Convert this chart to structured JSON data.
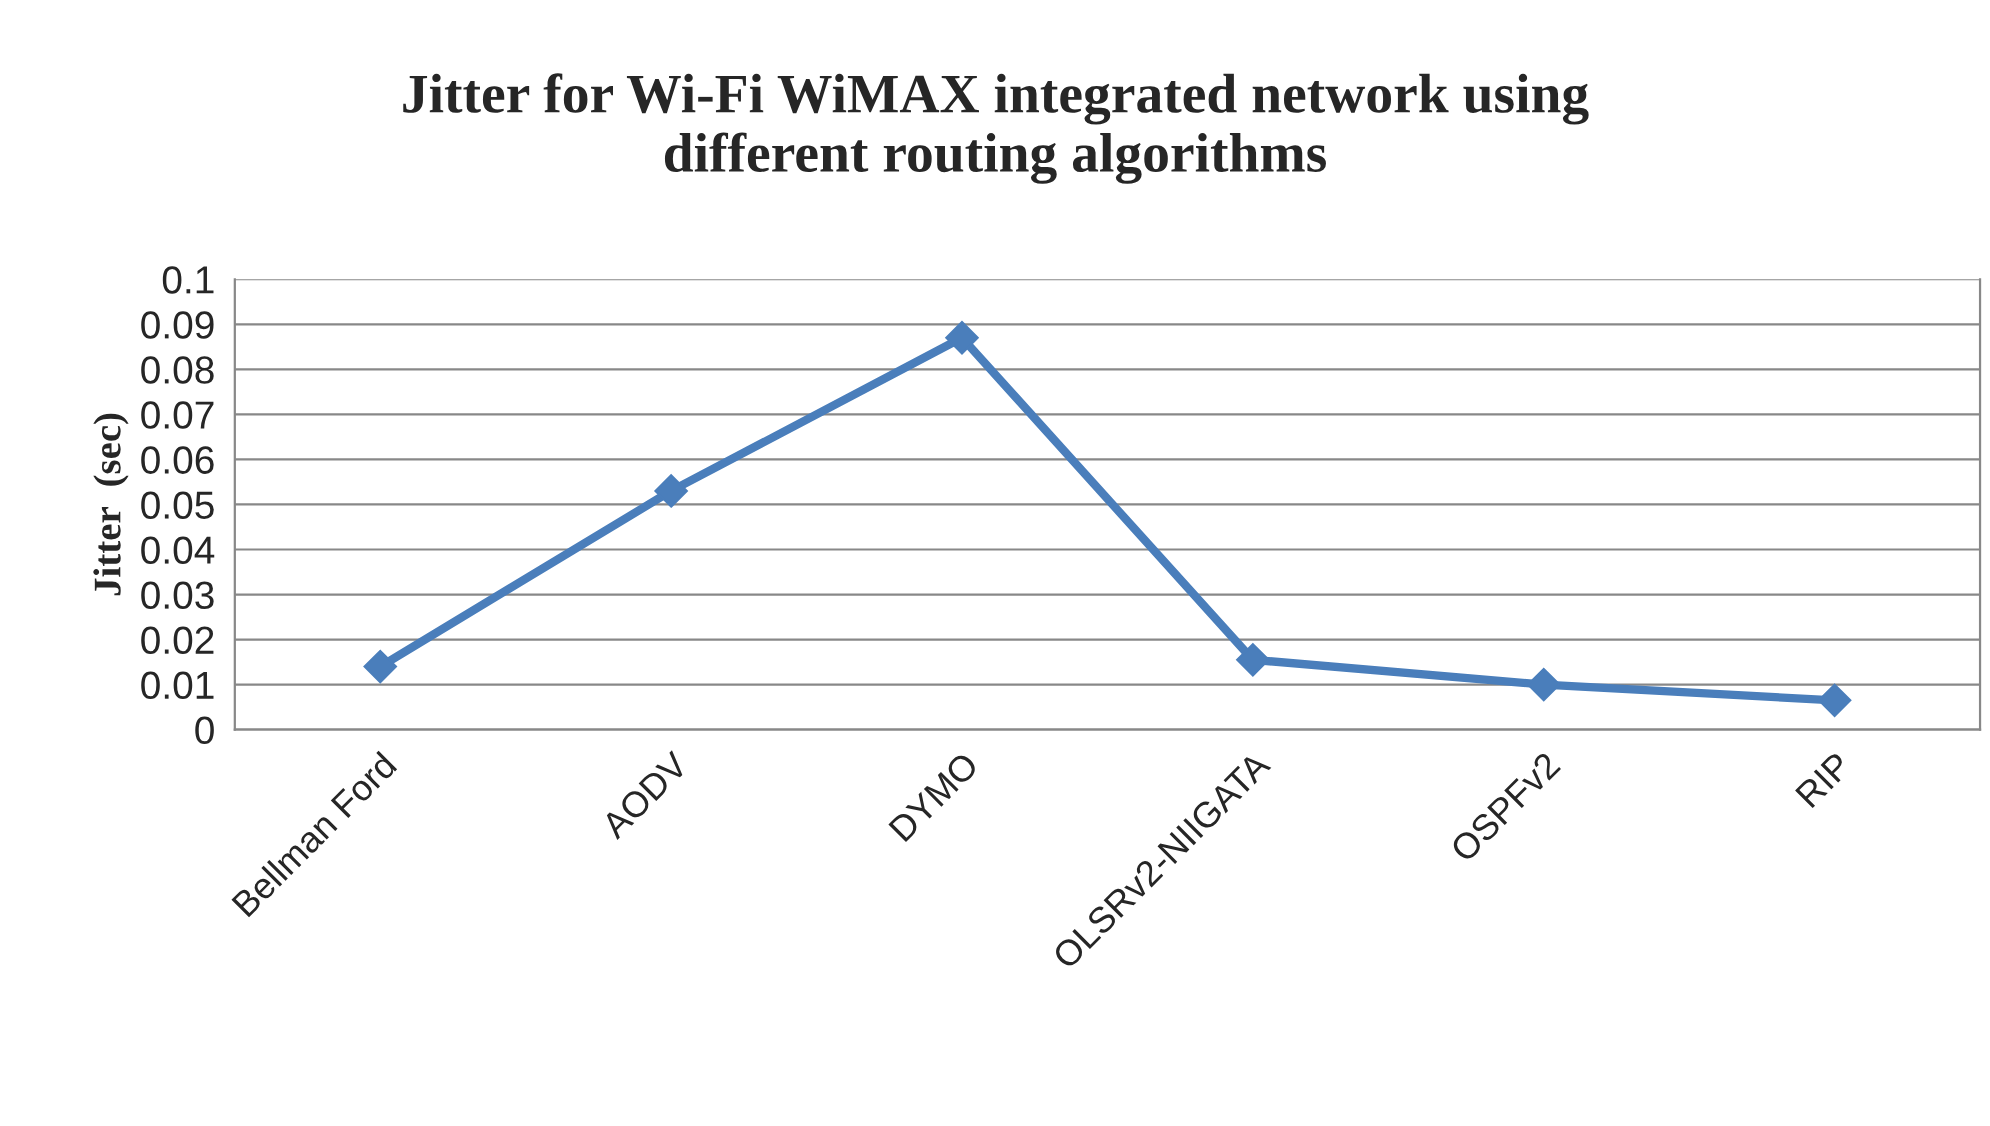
{
  "chart_data": {
    "type": "line",
    "title": "Jitter for Wi-Fi WiMAX integrated network using\ndifferent routing algorithms",
    "ylabel": "Jitter  (sec)",
    "categories": [
      "Bellman Ford",
      "AODV",
      "DYMO",
      "OLSRv2-NIIGATA",
      "OSPFv2",
      "RIP"
    ],
    "series": [
      {
        "color": "#4a7ebb",
        "values": [
          0.014,
          0.053,
          0.087,
          0.0155,
          0.01,
          0.0065
        ]
      }
    ],
    "ylim": [
      0,
      0.1
    ],
    "yticks": [
      0,
      0.01,
      0.02,
      0.03,
      0.04,
      0.05,
      0.06,
      0.07,
      0.08,
      0.09,
      0.1
    ],
    "grid": "y",
    "marker": "diamond",
    "line_style": "solid",
    "legend": false
  }
}
